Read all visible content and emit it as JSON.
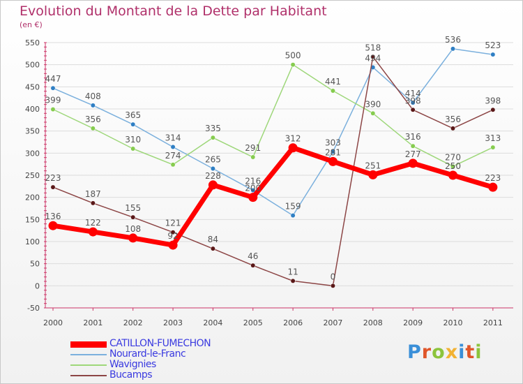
{
  "title": "Evolution du Montant de la Dette par Habitant",
  "unit": "(en €)",
  "logo": {
    "letters": [
      "P",
      "r",
      "o",
      "x",
      "i",
      "t",
      "i"
    ],
    "colors": [
      "#3a8fd8",
      "#e0562a",
      "#8cc43c",
      "#f2b233",
      "#3a8fd8",
      "#e0562a",
      "#8cc43c"
    ]
  },
  "chart_data": {
    "type": "line",
    "title": "Evolution du Montant de la Dette par Habitant",
    "ylabel": "(en €)",
    "xlabel": "",
    "x": [
      "2000",
      "2001",
      "2002",
      "2003",
      "2004",
      "2005",
      "2006",
      "2007",
      "2008",
      "2009",
      "2010",
      "2011"
    ],
    "ylim": [
      -50,
      550
    ],
    "yticks": [
      -50,
      0,
      50,
      100,
      150,
      200,
      250,
      300,
      350,
      400,
      450,
      500,
      550
    ],
    "grid": "horizontal",
    "legend_position": "bottom-left",
    "series": [
      {
        "name": "CATILLON-FUMECHON",
        "color": "#ff0000",
        "marker": "#ff0000",
        "emphasis": true,
        "values": [
          136,
          122,
          108,
          92,
          228,
          200,
          312,
          281,
          251,
          277,
          250,
          223
        ]
      },
      {
        "name": "Nourard-le-Franc",
        "color": "#7bb0dd",
        "marker": "#2f7fc4",
        "emphasis": false,
        "values": [
          447,
          408,
          365,
          314,
          265,
          216,
          159,
          303,
          494,
          414,
          536,
          523
        ]
      },
      {
        "name": "Wavignies",
        "color": "#9ed77a",
        "marker": "#86cc4f",
        "emphasis": false,
        "values": [
          399,
          356,
          310,
          274,
          335,
          291,
          500,
          441,
          390,
          316,
          270,
          313
        ]
      },
      {
        "name": "Bucamps",
        "color": "#8c4545",
        "marker": "#5a1818",
        "emphasis": false,
        "values": [
          223,
          187,
          155,
          121,
          84,
          46,
          11,
          0,
          518,
          398,
          356,
          398
        ]
      }
    ]
  }
}
